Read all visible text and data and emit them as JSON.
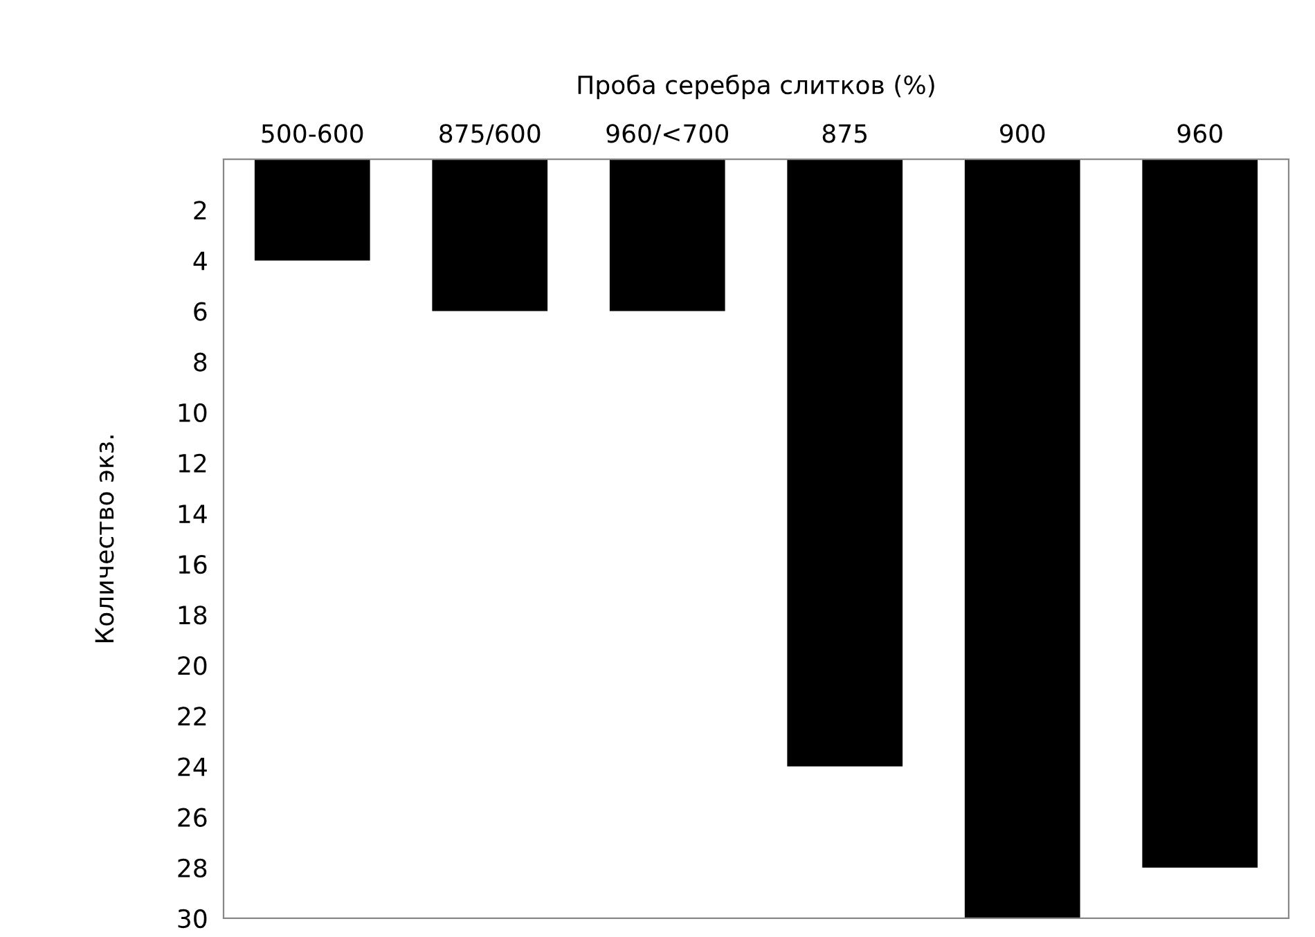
{
  "chart_data": {
    "type": "bar",
    "title": "Проба серебра слитков (%)",
    "ylabel": "Количество экз.",
    "categories": [
      "500-600",
      "875/600",
      "960/<700",
      "875",
      "900",
      "960"
    ],
    "values": [
      4,
      6,
      6,
      24,
      30,
      28
    ],
    "color": "#000000",
    "ylim": [
      30,
      0
    ],
    "yticks": [
      2,
      4,
      6,
      8,
      10,
      12,
      14,
      16,
      18,
      20,
      22,
      24,
      26,
      28,
      30
    ],
    "grid": false
  }
}
